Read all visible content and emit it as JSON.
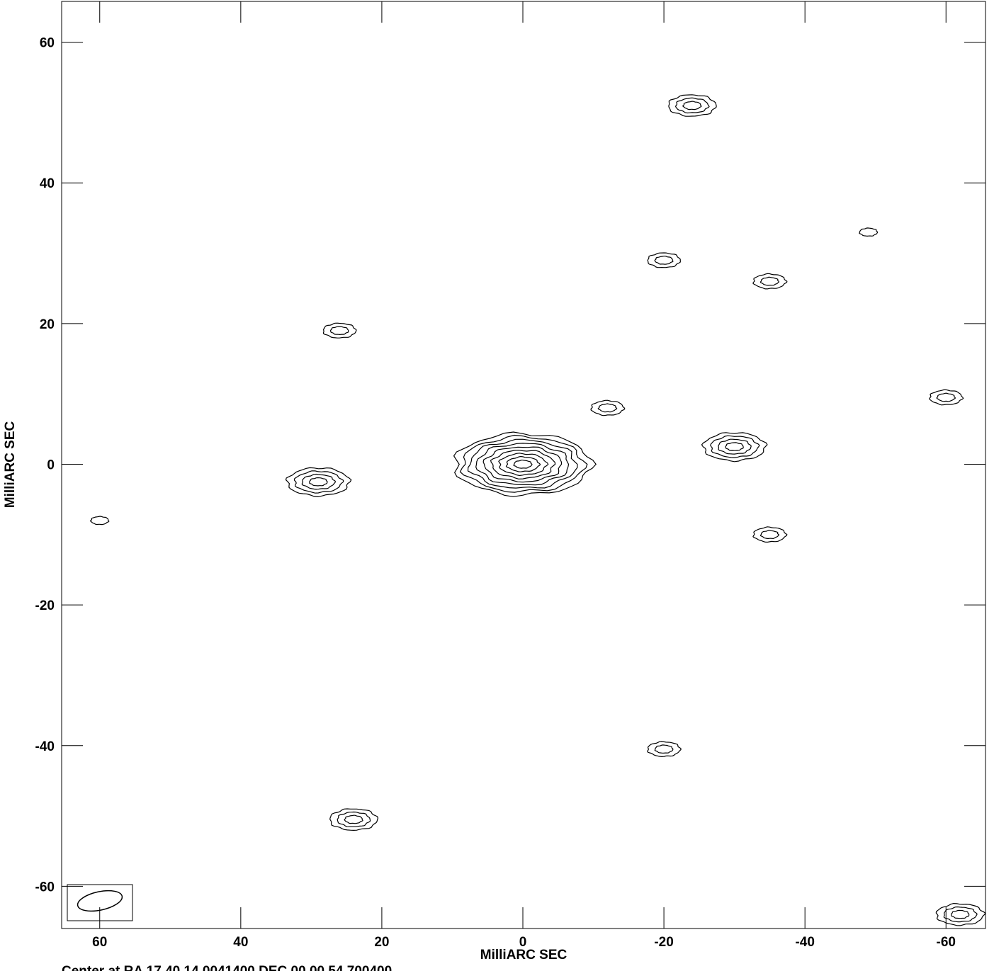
{
  "chart_data": {
    "type": "contour",
    "x_label": "MilliARC SEC",
    "y_label": "MilliARC SEC",
    "caption": "Center at RA 17 40 14.0041400  DEC 00 00 54.700400",
    "xlim": [
      65.4,
      -65.6
    ],
    "ylim": [
      -66,
      65.8
    ],
    "xticks": [
      60,
      40,
      20,
      0,
      -20,
      -40,
      -60
    ],
    "yticks": [
      60,
      40,
      20,
      0,
      -20,
      -40,
      -60
    ],
    "color": "#000000",
    "sources": [
      {
        "x": 0,
        "y": 0,
        "rings": 9
      },
      {
        "x": 29,
        "y": -2.5,
        "rings": 4
      },
      {
        "x": -30,
        "y": 2.5,
        "rings": 4
      },
      {
        "x": 24,
        "y": -50.5,
        "rings": 3
      },
      {
        "x": -24,
        "y": 51,
        "rings": 3
      },
      {
        "x": -12,
        "y": 8,
        "rings": 2
      },
      {
        "x": -35,
        "y": -10,
        "rings": 2
      },
      {
        "x": -20,
        "y": -40.5,
        "rings": 2
      },
      {
        "x": 26,
        "y": 19,
        "rings": 2
      },
      {
        "x": -20,
        "y": 29,
        "rings": 2
      },
      {
        "x": 60,
        "y": -8,
        "rings": 1
      },
      {
        "x": -60,
        "y": 9.5,
        "rings": 2
      },
      {
        "x": -35,
        "y": 26,
        "rings": 2
      },
      {
        "x": -49,
        "y": 33,
        "rings": 1
      },
      {
        "x": -62,
        "y": -64,
        "rings": 3
      }
    ]
  }
}
